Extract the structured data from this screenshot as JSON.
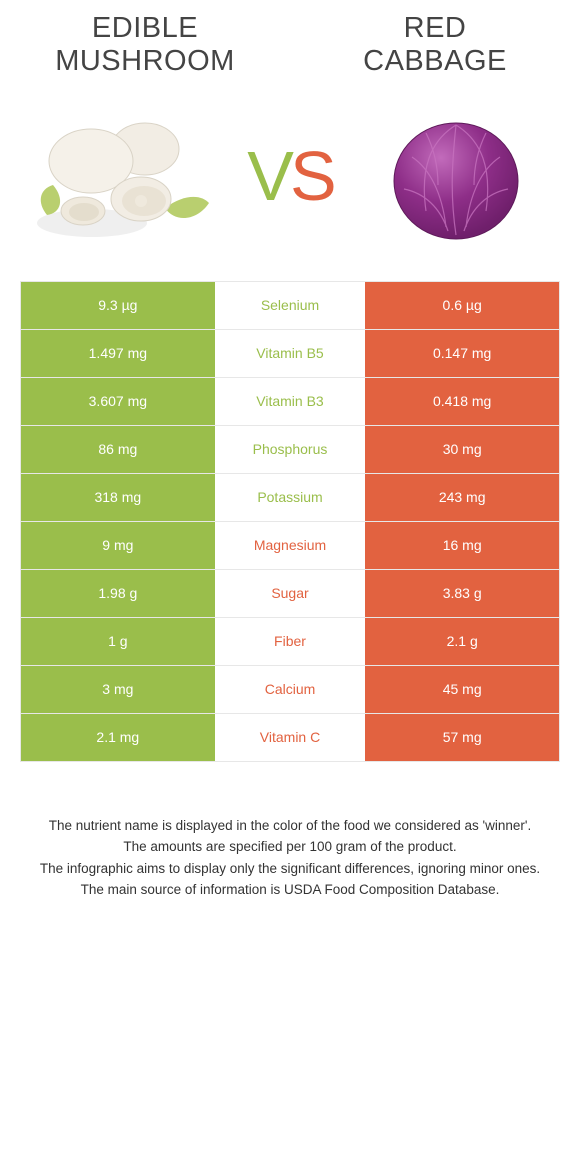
{
  "colors": {
    "green": "#9abe4b",
    "orange": "#e26240",
    "row_border": "#e7e7e7",
    "title": "#444444",
    "foot": "#333333",
    "white": "#ffffff"
  },
  "titles": {
    "left": "Edible\nmushroom",
    "right": "Red\ncabbage"
  },
  "vs": {
    "v": "V",
    "s": "S"
  },
  "icons": {
    "mushroom": {
      "cap_fill": "#f2ede4",
      "cap_edge": "#d9d3c6",
      "stem_fill": "#efe9dd",
      "leaf_fill": "#b9cf6f"
    },
    "cabbage": {
      "fill": "#8e2e88",
      "dark": "#6f1f6b",
      "hi": "#c26bbb"
    }
  },
  "rows": [
    {
      "label": "Selenium",
      "left": "9.3 µg",
      "right": "0.6 µg",
      "winner": "left"
    },
    {
      "label": "Vitamin B5",
      "left": "1.497 mg",
      "right": "0.147 mg",
      "winner": "left"
    },
    {
      "label": "Vitamin B3",
      "left": "3.607 mg",
      "right": "0.418 mg",
      "winner": "left"
    },
    {
      "label": "Phosphorus",
      "left": "86 mg",
      "right": "30 mg",
      "winner": "left"
    },
    {
      "label": "Potassium",
      "left": "318 mg",
      "right": "243 mg",
      "winner": "left"
    },
    {
      "label": "Magnesium",
      "left": "9 mg",
      "right": "16 mg",
      "winner": "right"
    },
    {
      "label": "Sugar",
      "left": "1.98 g",
      "right": "3.83 g",
      "winner": "right"
    },
    {
      "label": "Fiber",
      "left": "1 g",
      "right": "2.1 g",
      "winner": "right"
    },
    {
      "label": "Calcium",
      "left": "3 mg",
      "right": "45 mg",
      "winner": "right"
    },
    {
      "label": "Vitamin C",
      "left": "2.1 mg",
      "right": "57 mg",
      "winner": "right"
    }
  ],
  "footnotes": [
    "The nutrient name is displayed in the color of the food we considered as 'winner'.",
    "The amounts are specified per 100 gram of the product.",
    "The infographic aims to display only the significant differences, ignoring minor ones.",
    "The main source of information is USDA Food Composition Database."
  ]
}
